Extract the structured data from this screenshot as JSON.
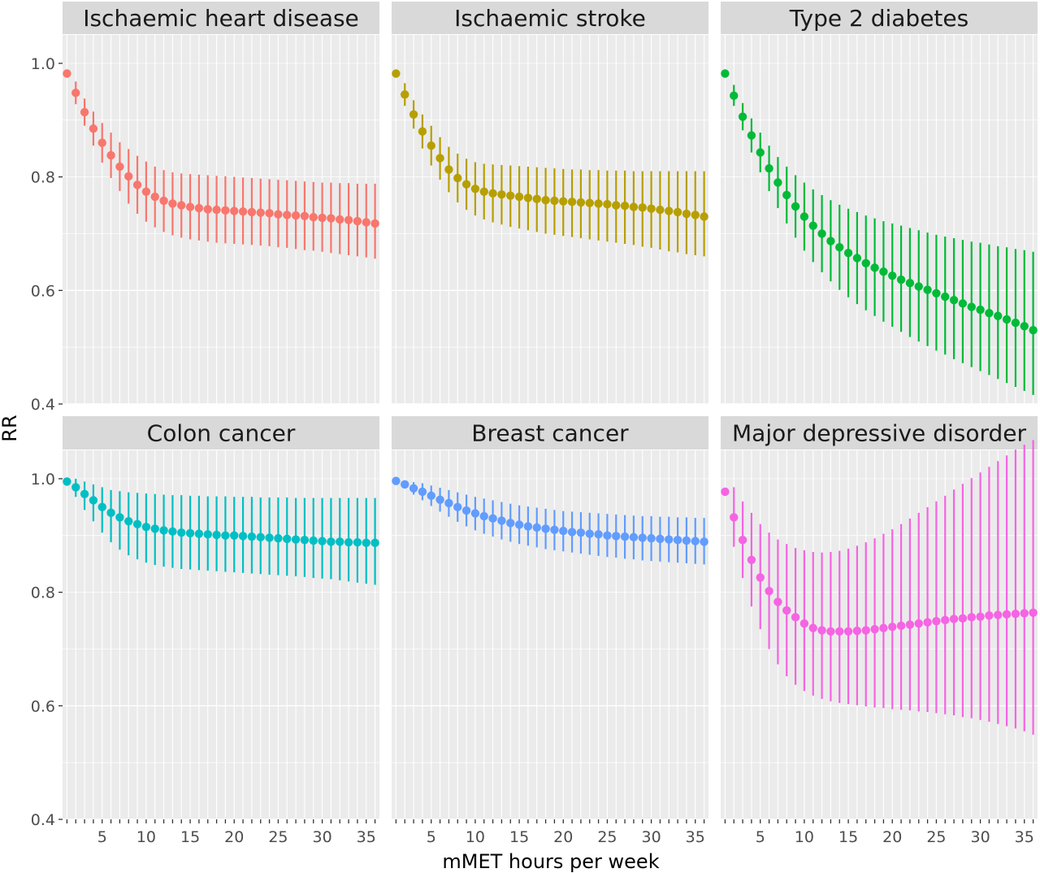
{
  "chart_data": {
    "type": "scatter",
    "style": "point-with-error-bars, faceted 2x3",
    "xlabel": "mMET hours per week",
    "ylabel": "RR",
    "xlim": [
      0,
      36
    ],
    "ylim": [
      0.4,
      1.05
    ],
    "x": [
      1,
      2,
      3,
      4,
      5,
      6,
      7,
      8,
      9,
      10,
      11,
      12,
      13,
      14,
      15,
      16,
      17,
      18,
      19,
      20,
      21,
      22,
      23,
      24,
      25,
      26,
      27,
      28,
      29,
      30,
      31,
      32,
      33,
      34,
      35,
      36
    ],
    "x_ticks": [
      "5",
      "10",
      "15",
      "20",
      "25",
      "30",
      "35"
    ],
    "y_ticks": [
      "0.4",
      "0.6",
      "0.8",
      "1.0"
    ],
    "panels": [
      {
        "title": "Ischaemic heart disease",
        "color": "#F8766D",
        "est": [
          0.982,
          0.948,
          0.914,
          0.885,
          0.86,
          0.838,
          0.818,
          0.801,
          0.786,
          0.774,
          0.765,
          0.758,
          0.753,
          0.75,
          0.747,
          0.745,
          0.743,
          0.742,
          0.741,
          0.74,
          0.739,
          0.738,
          0.737,
          0.736,
          0.734,
          0.733,
          0.732,
          0.731,
          0.729,
          0.728,
          0.727,
          0.725,
          0.724,
          0.722,
          0.72,
          0.718
        ],
        "lo": [
          0.982,
          0.928,
          0.89,
          0.855,
          0.825,
          0.798,
          0.775,
          0.753,
          0.735,
          0.721,
          0.711,
          0.703,
          0.697,
          0.693,
          0.69,
          0.688,
          0.686,
          0.684,
          0.683,
          0.682,
          0.681,
          0.68,
          0.679,
          0.678,
          0.676,
          0.675,
          0.673,
          0.671,
          0.67,
          0.668,
          0.666,
          0.664,
          0.662,
          0.66,
          0.658,
          0.656
        ],
        "hi": [
          0.982,
          0.968,
          0.938,
          0.915,
          0.895,
          0.878,
          0.861,
          0.849,
          0.837,
          0.827,
          0.818,
          0.812,
          0.808,
          0.806,
          0.805,
          0.804,
          0.803,
          0.802,
          0.801,
          0.8,
          0.799,
          0.798,
          0.797,
          0.796,
          0.795,
          0.794,
          0.793,
          0.792,
          0.791,
          0.79,
          0.79,
          0.789,
          0.789,
          0.788,
          0.788,
          0.788
        ]
      },
      {
        "title": "Ischaemic stroke",
        "color": "#B79F00",
        "est": [
          0.982,
          0.945,
          0.91,
          0.88,
          0.855,
          0.833,
          0.813,
          0.798,
          0.787,
          0.779,
          0.774,
          0.771,
          0.769,
          0.767,
          0.765,
          0.763,
          0.761,
          0.759,
          0.758,
          0.757,
          0.756,
          0.755,
          0.754,
          0.753,
          0.752,
          0.75,
          0.749,
          0.747,
          0.746,
          0.744,
          0.742,
          0.74,
          0.738,
          0.735,
          0.733,
          0.73
        ],
        "lo": [
          0.982,
          0.925,
          0.885,
          0.85,
          0.82,
          0.795,
          0.773,
          0.755,
          0.742,
          0.732,
          0.725,
          0.72,
          0.716,
          0.712,
          0.709,
          0.706,
          0.703,
          0.7,
          0.698,
          0.696,
          0.694,
          0.692,
          0.69,
          0.688,
          0.686,
          0.684,
          0.682,
          0.68,
          0.677,
          0.675,
          0.672,
          0.669,
          0.667,
          0.664,
          0.662,
          0.66
        ],
        "hi": [
          0.982,
          0.965,
          0.935,
          0.91,
          0.89,
          0.87,
          0.853,
          0.841,
          0.832,
          0.826,
          0.823,
          0.822,
          0.821,
          0.82,
          0.819,
          0.818,
          0.817,
          0.816,
          0.815,
          0.814,
          0.813,
          0.813,
          0.812,
          0.812,
          0.811,
          0.811,
          0.811,
          0.81,
          0.81,
          0.81,
          0.81,
          0.81,
          0.81,
          0.81,
          0.81,
          0.81
        ]
      },
      {
        "title": "Type 2 diabetes",
        "color": "#00BA38",
        "est": [
          0.982,
          0.943,
          0.906,
          0.873,
          0.843,
          0.815,
          0.79,
          0.768,
          0.748,
          0.73,
          0.714,
          0.7,
          0.687,
          0.676,
          0.666,
          0.657,
          0.648,
          0.64,
          0.633,
          0.626,
          0.619,
          0.613,
          0.607,
          0.601,
          0.595,
          0.589,
          0.583,
          0.577,
          0.571,
          0.566,
          0.56,
          0.555,
          0.549,
          0.543,
          0.537,
          0.53
        ],
        "lo": [
          0.982,
          0.925,
          0.882,
          0.843,
          0.808,
          0.775,
          0.745,
          0.718,
          0.693,
          0.67,
          0.65,
          0.632,
          0.616,
          0.601,
          0.588,
          0.576,
          0.565,
          0.555,
          0.545,
          0.536,
          0.527,
          0.518,
          0.51,
          0.502,
          0.494,
          0.487,
          0.479,
          0.472,
          0.465,
          0.458,
          0.451,
          0.444,
          0.437,
          0.43,
          0.423,
          0.416
        ],
        "hi": [
          0.982,
          0.962,
          0.93,
          0.903,
          0.878,
          0.855,
          0.835,
          0.818,
          0.803,
          0.79,
          0.778,
          0.768,
          0.759,
          0.751,
          0.744,
          0.738,
          0.732,
          0.727,
          0.722,
          0.718,
          0.714,
          0.71,
          0.706,
          0.702,
          0.698,
          0.695,
          0.692,
          0.689,
          0.686,
          0.684,
          0.681,
          0.678,
          0.676,
          0.673,
          0.671,
          0.668
        ]
      },
      {
        "title": "Colon cancer",
        "color": "#00BFC4",
        "est": [
          0.995,
          0.985,
          0.973,
          0.962,
          0.95,
          0.94,
          0.932,
          0.925,
          0.92,
          0.915,
          0.912,
          0.909,
          0.907,
          0.905,
          0.904,
          0.903,
          0.902,
          0.901,
          0.9,
          0.9,
          0.899,
          0.898,
          0.897,
          0.896,
          0.895,
          0.894,
          0.893,
          0.892,
          0.891,
          0.89,
          0.889,
          0.889,
          0.888,
          0.888,
          0.887,
          0.887
        ],
        "lo": [
          0.995,
          0.968,
          0.945,
          0.925,
          0.905,
          0.888,
          0.875,
          0.865,
          0.858,
          0.852,
          0.848,
          0.845,
          0.843,
          0.841,
          0.84,
          0.839,
          0.838,
          0.837,
          0.836,
          0.835,
          0.834,
          0.833,
          0.832,
          0.831,
          0.83,
          0.829,
          0.828,
          0.827,
          0.825,
          0.824,
          0.823,
          0.821,
          0.819,
          0.817,
          0.815,
          0.813
        ],
        "hi": [
          0.995,
          1.0,
          0.995,
          0.99,
          0.985,
          0.98,
          0.978,
          0.976,
          0.975,
          0.974,
          0.973,
          0.972,
          0.971,
          0.971,
          0.97,
          0.97,
          0.969,
          0.969,
          0.969,
          0.968,
          0.968,
          0.968,
          0.967,
          0.967,
          0.967,
          0.967,
          0.966,
          0.966,
          0.966,
          0.966,
          0.966,
          0.966,
          0.966,
          0.966,
          0.966,
          0.966
        ]
      },
      {
        "title": "Breast cancer",
        "color": "#619CFF",
        "est": [
          0.996,
          0.99,
          0.983,
          0.977,
          0.97,
          0.963,
          0.957,
          0.95,
          0.944,
          0.939,
          0.934,
          0.93,
          0.926,
          0.922,
          0.919,
          0.916,
          0.914,
          0.912,
          0.91,
          0.908,
          0.906,
          0.905,
          0.903,
          0.902,
          0.9,
          0.899,
          0.898,
          0.897,
          0.896,
          0.895,
          0.894,
          0.893,
          0.892,
          0.891,
          0.89,
          0.889
        ],
        "lo": [
          0.996,
          0.985,
          0.972,
          0.962,
          0.952,
          0.942,
          0.933,
          0.924,
          0.916,
          0.909,
          0.903,
          0.898,
          0.893,
          0.889,
          0.885,
          0.882,
          0.879,
          0.876,
          0.874,
          0.872,
          0.87,
          0.868,
          0.866,
          0.864,
          0.862,
          0.861,
          0.859,
          0.858,
          0.856,
          0.855,
          0.854,
          0.853,
          0.852,
          0.851,
          0.85,
          0.849
        ],
        "hi": [
          0.996,
          0.995,
          0.994,
          0.992,
          0.988,
          0.984,
          0.98,
          0.976,
          0.972,
          0.968,
          0.965,
          0.962,
          0.959,
          0.956,
          0.953,
          0.951,
          0.949,
          0.947,
          0.945,
          0.943,
          0.942,
          0.941,
          0.94,
          0.939,
          0.938,
          0.937,
          0.936,
          0.935,
          0.934,
          0.934,
          0.933,
          0.933,
          0.932,
          0.932,
          0.931,
          0.931
        ]
      },
      {
        "title": "Major depressive disorder",
        "color": "#F564E3",
        "est": [
          0.977,
          0.932,
          0.892,
          0.857,
          0.826,
          0.802,
          0.783,
          0.768,
          0.756,
          0.745,
          0.737,
          0.733,
          0.731,
          0.731,
          0.731,
          0.732,
          0.733,
          0.735,
          0.737,
          0.739,
          0.741,
          0.743,
          0.745,
          0.747,
          0.749,
          0.751,
          0.753,
          0.754,
          0.756,
          0.757,
          0.759,
          0.76,
          0.761,
          0.762,
          0.763,
          0.764
        ],
        "lo": [
          0.977,
          0.88,
          0.825,
          0.775,
          0.735,
          0.7,
          0.673,
          0.652,
          0.637,
          0.626,
          0.618,
          0.612,
          0.608,
          0.605,
          0.603,
          0.601,
          0.599,
          0.597,
          0.596,
          0.594,
          0.593,
          0.592,
          0.59,
          0.589,
          0.587,
          0.585,
          0.583,
          0.58,
          0.578,
          0.575,
          0.572,
          0.568,
          0.564,
          0.56,
          0.555,
          0.549
        ],
        "hi": [
          0.977,
          0.985,
          0.96,
          0.94,
          0.92,
          0.905,
          0.893,
          0.885,
          0.878,
          0.874,
          0.871,
          0.87,
          0.871,
          0.873,
          0.877,
          0.882,
          0.888,
          0.895,
          0.903,
          0.911,
          0.92,
          0.93,
          0.94,
          0.95,
          0.96,
          0.97,
          0.981,
          0.991,
          1.001,
          1.011,
          1.021,
          1.031,
          1.041,
          1.051,
          1.06,
          1.068
        ]
      }
    ]
  }
}
